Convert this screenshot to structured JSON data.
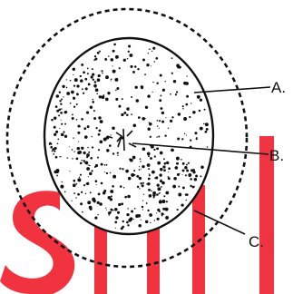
{
  "diagram": {
    "labels": [
      {
        "id": "A",
        "text": "A."
      },
      {
        "id": "B",
        "text": "B."
      },
      {
        "id": "C",
        "text": "C."
      }
    ]
  },
  "colors": {
    "ink": "#111111",
    "watermark": "#f01e2c",
    "background": "#ffffff"
  }
}
